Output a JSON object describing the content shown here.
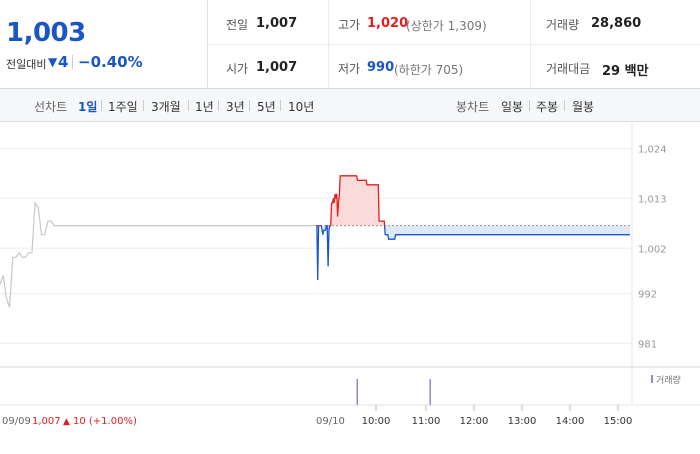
{
  "summary": {
    "price": "1,003",
    "change_label": "전일대비",
    "change_amount": "4",
    "change_rate": "−0.40%"
  },
  "stats": {
    "prev_close_label": "전일",
    "prev_close": "1,007",
    "open_label": "시가",
    "open": "1,007",
    "high_label": "고가",
    "high": "1,020",
    "high_sub": "(상한가 1,309)",
    "low_label": "저가",
    "low": "990",
    "low_sub": "(하한가 705)",
    "volume_label": "거래량",
    "volume": "28,860",
    "amount_label": "거래대금",
    "amount": "29 백만"
  },
  "toolbar": {
    "line_label": "선차트",
    "line_items": [
      "1일",
      "1주일",
      "3개월",
      "1년",
      "3년",
      "5년",
      "10년"
    ],
    "active_line": "1일",
    "candle_label": "봉차트",
    "candle_items": [
      "일봉",
      "주봉",
      "월봉"
    ]
  },
  "colors": {
    "up": "#e02020",
    "down": "#1a56c4",
    "up_fill": "#fbdada",
    "down_fill": "#dde9f7",
    "prev_line": "#c8c8c8"
  },
  "chart_data": {
    "type": "line",
    "y_ticks": [
      "1,024",
      "1,013",
      "1,002",
      "992",
      "981"
    ],
    "ylim": [
      978,
      1027
    ],
    "reference_price": 1007,
    "prev_day": {
      "label": "09/09",
      "close_text": "1,007",
      "change_text": "10 (+1.00%)",
      "values": [
        994,
        996,
        991,
        989,
        1000,
        1000,
        1001,
        1000,
        1000,
        1001,
        1001,
        1012,
        1011,
        1005,
        1005,
        1008,
        1008,
        1007,
        1007,
        1007,
        1007,
        1007,
        1007,
        1007,
        1007,
        1007,
        1007,
        1007,
        1007,
        1007,
        1007,
        1007,
        1007,
        1007,
        1007,
        1007,
        1007,
        1007,
        1007,
        1007,
        1007,
        1007,
        1007,
        1007,
        1007,
        1007,
        1007,
        1007,
        1007,
        1007,
        1007,
        1007,
        1007,
        1007,
        1007,
        1007,
        1007,
        1007,
        1007,
        1007,
        1007,
        1007,
        1007,
        1007,
        1007,
        1007,
        1007,
        1007,
        1007,
        1007,
        1007,
        1007,
        1007,
        1007,
        1007,
        1007,
        1007,
        1007,
        1007,
        1007,
        1007,
        1007,
        1007,
        1007,
        1007,
        1007,
        1007,
        1007,
        1007,
        1007,
        1007,
        1007,
        1007,
        1007,
        1007,
        1007,
        1007,
        1007,
        1007,
        1007
      ]
    },
    "today": {
      "label": "09/10",
      "x_labels": [
        "10:00",
        "11:00",
        "12:00",
        "13:00",
        "14:00",
        "15:00"
      ],
      "values": [
        1007,
        1007,
        995,
        1007,
        1007,
        1007,
        1007,
        1006,
        1005,
        1006,
        1006,
        1006,
        1007,
        1007,
        998,
        1006,
        1007,
        1007,
        1012,
        1012,
        1013,
        1012,
        1014,
        1013,
        1014,
        1009,
        1012,
        1014,
        1018,
        1018,
        1018,
        1018,
        1018,
        1018,
        1018,
        1018,
        1018,
        1018,
        1018,
        1018,
        1018,
        1018,
        1018,
        1018,
        1018,
        1018,
        1018,
        1018,
        1017,
        1017,
        1017,
        1017,
        1017,
        1017,
        1017,
        1017,
        1017,
        1017,
        1017,
        1016,
        1016,
        1016,
        1016,
        1016,
        1016,
        1016,
        1016,
        1016,
        1016,
        1016,
        1016,
        1016,
        1016,
        1008,
        1008,
        1008,
        1008,
        1008,
        1008,
        1008,
        1005,
        1005,
        1005,
        1005,
        1004,
        1004,
        1004,
        1004,
        1004,
        1004,
        1004,
        1004,
        1005,
        1005,
        1005,
        1005,
        1005,
        1005,
        1005,
        1005,
        1005,
        1005,
        1005,
        1005,
        1005,
        1005,
        1005,
        1005,
        1005,
        1005,
        1005,
        1005,
        1005,
        1005,
        1005,
        1005,
        1005,
        1005,
        1005,
        1005,
        1005,
        1005,
        1005,
        1005,
        1005,
        1005,
        1005,
        1005,
        1005,
        1005,
        1005,
        1005,
        1005,
        1005,
        1005,
        1005,
        1005,
        1005,
        1005,
        1005,
        1005,
        1005,
        1005,
        1005,
        1005,
        1005,
        1005,
        1005,
        1005,
        1005,
        1005,
        1005,
        1005,
        1005,
        1005,
        1005,
        1005,
        1005,
        1005,
        1005,
        1005,
        1005,
        1005,
        1005,
        1005,
        1005,
        1005,
        1005,
        1005,
        1005,
        1005,
        1005,
        1005,
        1005,
        1005,
        1005,
        1005,
        1005,
        1005,
        1005,
        1005,
        1005,
        1005,
        1005,
        1005,
        1005,
        1005,
        1005,
        1005,
        1005,
        1005,
        1005,
        1005,
        1005,
        1005,
        1005,
        1005,
        1005,
        1005,
        1005,
        1005,
        1005,
        1005,
        1005,
        1005,
        1005,
        1005,
        1005,
        1005,
        1005,
        1005,
        1005,
        1005,
        1005,
        1005,
        1005,
        1005,
        1005,
        1005,
        1005,
        1005,
        1005,
        1005,
        1005,
        1005,
        1005,
        1005,
        1005,
        1005,
        1005,
        1005,
        1005,
        1005,
        1005,
        1005,
        1005,
        1005,
        1005,
        1005,
        1005,
        1005,
        1005,
        1005,
        1005,
        1005,
        1005,
        1005,
        1005,
        1005,
        1005,
        1005,
        1005,
        1005,
        1005,
        1005,
        1005,
        1005,
        1005,
        1005,
        1005,
        1005,
        1005,
        1005,
        1005,
        1005,
        1005,
        1005,
        1005,
        1005,
        1005,
        1005,
        1005,
        1005,
        1005,
        1005,
        1005,
        1005,
        1005,
        1005,
        1005,
        1005,
        1005,
        1005,
        1005,
        1005,
        1005,
        1005,
        1005,
        1005,
        1005,
        1005,
        1005,
        1005,
        1005,
        1005,
        1005,
        1005,
        1005,
        1005,
        1005,
        1005,
        1005,
        1005,
        1005,
        1005,
        1005,
        1005,
        1005,
        1005,
        1005,
        1005,
        1005,
        1005,
        1005,
        1005,
        1005,
        1005,
        1005,
        1005,
        1005,
        1005,
        1005,
        1005,
        1005,
        1005,
        1005,
        1005,
        1005,
        1005,
        1005,
        1005,
        1005,
        1005,
        1005,
        1005,
        1005,
        1005,
        1005,
        1005,
        1005,
        1005,
        1005,
        1005,
        1005,
        1005,
        1005,
        1005,
        1005,
        1005,
        1005,
        1005,
        1005,
        1005,
        1005,
        1005,
        1005,
        1005,
        1005,
        1005,
        1005,
        1005,
        1005,
        1005,
        1005
      ]
    },
    "volume_label": "거래량",
    "volume": [
      0,
      0,
      0,
      0,
      0,
      0,
      0,
      0,
      0,
      0,
      0,
      0,
      0,
      1,
      0,
      0,
      0,
      0,
      0,
      0,
      0,
      0,
      0,
      0,
      0,
      0,
      0,
      0,
      0,
      0,
      0,
      0,
      0,
      0,
      0,
      0,
      1,
      0,
      0,
      0,
      0,
      0,
      0,
      0,
      0,
      0,
      0,
      0,
      0,
      0,
      0,
      0,
      0,
      0,
      0,
      0,
      0,
      0,
      0,
      0,
      0,
      0,
      0,
      0,
      0,
      0,
      0,
      0,
      0,
      0,
      0,
      0,
      0,
      0,
      0,
      0,
      0,
      0,
      0,
      0,
      0,
      0,
      0,
      0,
      0,
      0,
      0,
      0,
      0,
      0,
      0,
      0,
      0,
      0,
      0,
      0,
      0,
      0,
      0,
      0
    ]
  }
}
